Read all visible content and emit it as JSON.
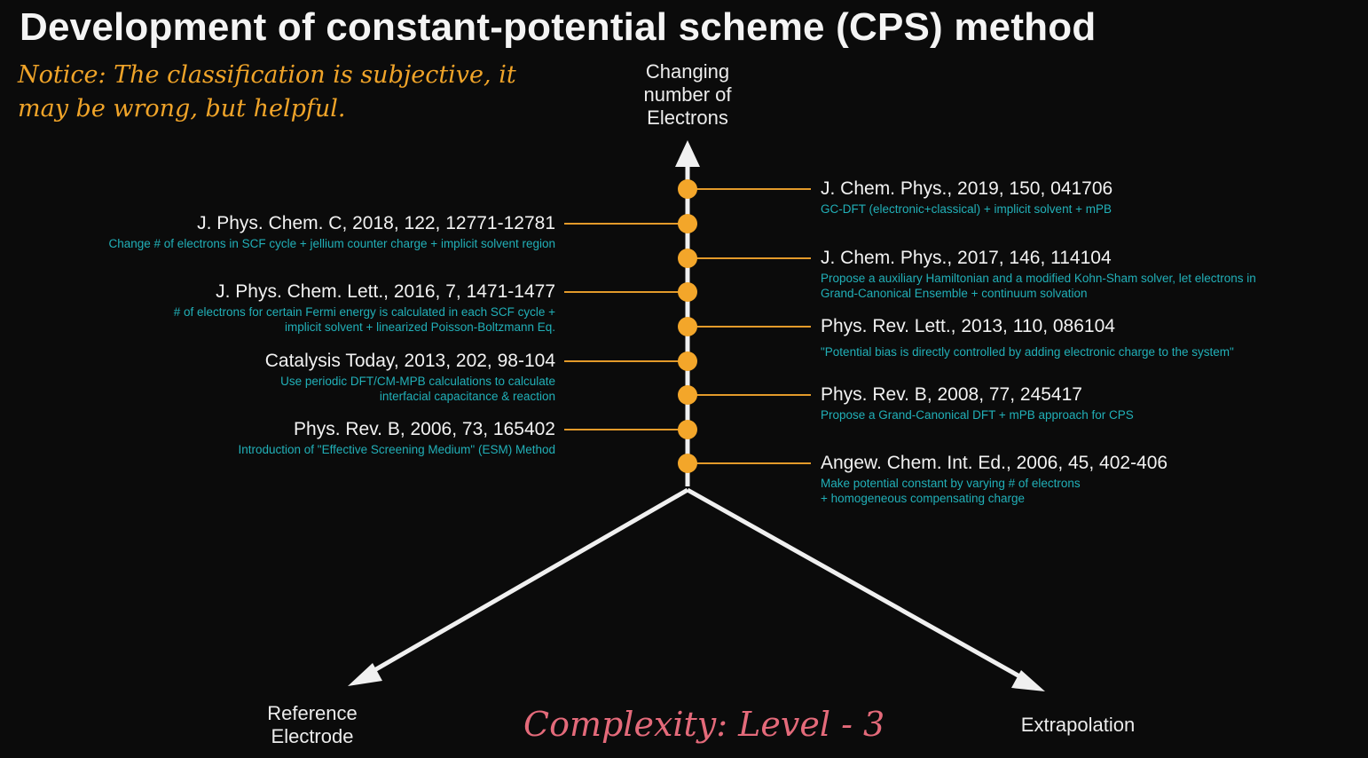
{
  "title": "Development of constant-potential scheme (CPS) method",
  "notice": "Notice: The classification is subjective, it may be wrong, but helpful.",
  "axes": {
    "up": "Changing number of Electrons",
    "left": "Reference Electrode",
    "right": "Extrapolation"
  },
  "complexity": "Complexity: Level - 3",
  "colors": {
    "node": "#f3a62a",
    "connector": "#e39a2a",
    "axis": "#f0f0f0",
    "desc": "#21b0b8",
    "notice": "#f0a429",
    "complexity": "#e46a7a"
  },
  "left_refs": [
    {
      "citation": "J. Phys. Chem. C, 2018, 122, 12771-12781",
      "desc": "Change # of electrons in SCF cycle + jellium counter charge + implicit solvent region"
    },
    {
      "citation": "J. Phys. Chem. Lett., 2016, 7, 1471-1477",
      "desc": "# of electrons for certain Fermi energy is calculated in each SCF cycle + implicit solvent + linearized Poisson-Boltzmann Eq."
    },
    {
      "citation": "Catalysis Today, 2013, 202, 98-104",
      "desc": "Use periodic DFT/CM-MPB calculations to calculate interfacial capacitance & reaction"
    },
    {
      "citation": "Phys. Rev. B, 2006, 73, 165402",
      "desc": "Introduction of  \"Effective Screening Medium\" (ESM) Method"
    }
  ],
  "right_refs": [
    {
      "citation": "J. Chem. Phys., 2019, 150, 041706",
      "desc": "GC-DFT (electronic+classical) + implicit solvent + mPB"
    },
    {
      "citation": "J. Chem. Phys., 2017, 146, 114104",
      "desc": "Propose a auxiliary Hamiltonian and a modified Kohn-Sham solver, let electrons in Grand-Canonical Ensemble + continuum solvation"
    },
    {
      "citation": "Phys. Rev. Lett., 2013, 110, 086104",
      "desc": "\"Potential bias is directly controlled by adding electronic charge to the system\""
    },
    {
      "citation": "Phys. Rev. B, 2008, 77, 245417",
      "desc": "Propose a Grand-Canonical DFT + mPB approach for CPS"
    },
    {
      "citation": "Angew. Chem. Int. Ed., 2006, 45, 402-406",
      "desc": "Make potential constant by varying # of electrons + homogeneous compensating charge"
    }
  ]
}
